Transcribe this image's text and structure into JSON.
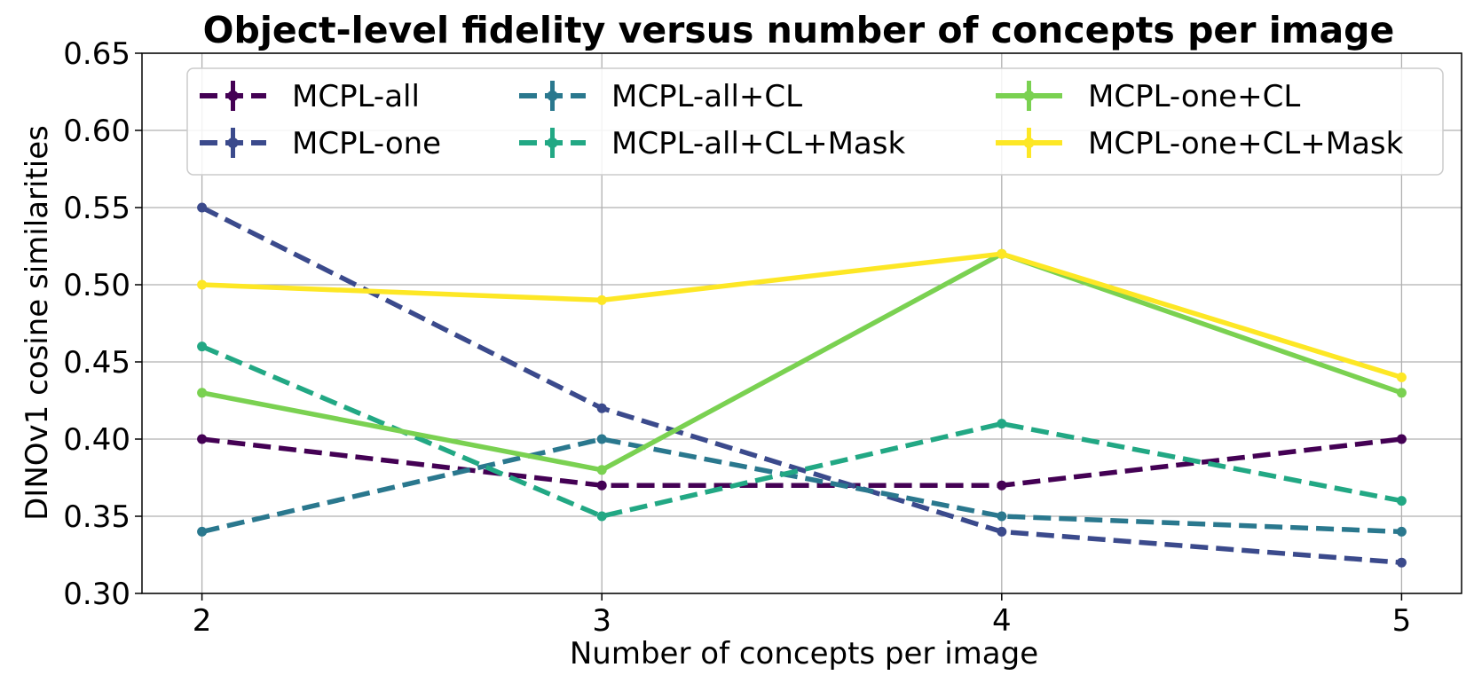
{
  "chart_data": {
    "type": "line",
    "title": "Object-level fidelity versus number of concepts per image",
    "xlabel": "Number of concepts per image",
    "ylabel": "DINOv1 cosine similarities",
    "x": [
      2,
      3,
      4,
      5
    ],
    "x_tick_labels": [
      "2",
      "3",
      "4",
      "5"
    ],
    "xlim": [
      1.85,
      5.15
    ],
    "ylim": [
      0.3,
      0.65
    ],
    "y_ticks": [
      0.3,
      0.35,
      0.4,
      0.45,
      0.5,
      0.55,
      0.6,
      0.65
    ],
    "y_tick_labels": [
      "0.30",
      "0.35",
      "0.40",
      "0.45",
      "0.50",
      "0.55",
      "0.60",
      "0.65"
    ],
    "grid": true,
    "legend_position": "top",
    "series": [
      {
        "name": "MCPL-all",
        "values": [
          0.4,
          0.37,
          0.37,
          0.4
        ],
        "color": "#440154",
        "dashed": true
      },
      {
        "name": "MCPL-one",
        "values": [
          0.55,
          0.42,
          0.34,
          0.32
        ],
        "color": "#3b4a8c",
        "dashed": true
      },
      {
        "name": "MCPL-all+CL",
        "values": [
          0.34,
          0.4,
          0.35,
          0.34
        ],
        "color": "#2a788e",
        "dashed": true
      },
      {
        "name": "MCPL-all+CL+Mask",
        "values": [
          0.46,
          0.35,
          0.41,
          0.36
        ],
        "color": "#22a884",
        "dashed": true
      },
      {
        "name": "MCPL-one+CL",
        "values": [
          0.43,
          0.38,
          0.52,
          0.43
        ],
        "color": "#7ad151",
        "dashed": false
      },
      {
        "name": "MCPL-one+CL+Mask",
        "values": [
          0.5,
          0.49,
          0.52,
          0.44
        ],
        "color": "#fde725",
        "dashed": false
      }
    ]
  }
}
